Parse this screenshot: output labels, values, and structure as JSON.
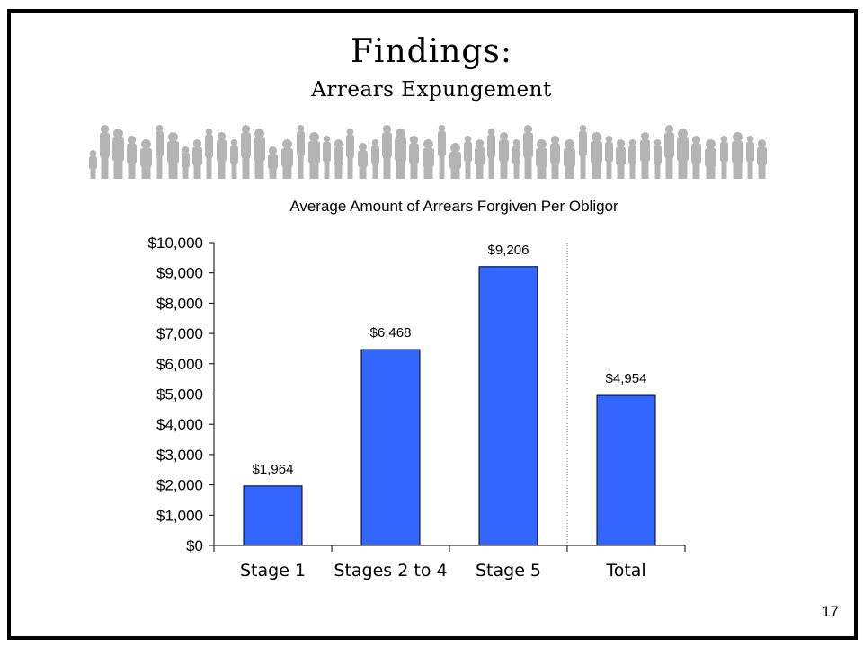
{
  "slide": {
    "title": "Findings:",
    "subtitle": "Arrears Expungement",
    "page_number": "17"
  },
  "banner": {
    "icon": "crowd-silhouette-icon",
    "color": "#B4B4B4"
  },
  "chart_data": {
    "type": "bar",
    "title": "Average Amount of Arrears Forgiven Per Obligor",
    "categories": [
      "Stage 1",
      "Stages 2 to 4",
      "Stage 5",
      "Total"
    ],
    "values": [
      1964,
      6468,
      9206,
      4954
    ],
    "value_labels": [
      "$1,964",
      "$6,468",
      "$9,206",
      "$4,954"
    ],
    "ylim": [
      0,
      10000
    ],
    "y_ticks": [
      0,
      1000,
      2000,
      3000,
      4000,
      5000,
      6000,
      7000,
      8000,
      9000,
      10000
    ],
    "y_tick_labels": [
      "$0",
      "$1,000",
      "$2,000",
      "$3,000",
      "$4,000",
      "$5,000",
      "$6,000",
      "$7,000",
      "$8,000",
      "$9,000",
      "$10,000"
    ],
    "xlabel": "",
    "ylabel": "",
    "grid": false,
    "legend": "none",
    "bar_color": "#3366FF",
    "separator_before_category": "Total"
  }
}
